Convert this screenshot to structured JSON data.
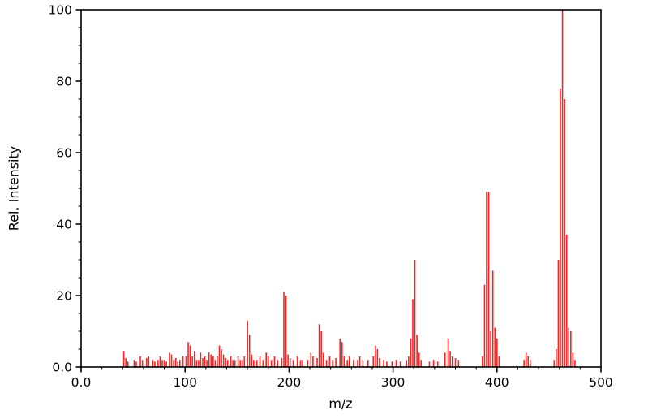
{
  "chart_data": {
    "type": "bar",
    "variant": "mass-spectrum-stick-plot",
    "title": "",
    "xlabel": "m/z",
    "ylabel": "Rel. Intensity",
    "xlim": [
      0,
      500
    ],
    "ylim": [
      0,
      100
    ],
    "grid": false,
    "legend": null,
    "background_color": "#ffffff",
    "axis_color": "#000000",
    "peak_color": "#ff1f1f",
    "xticks": {
      "values": [
        0,
        100,
        200,
        300,
        400,
        500
      ],
      "labels": [
        "0.0",
        "100",
        "200",
        "300",
        "400",
        "500"
      ],
      "minor_step": 20
    },
    "yticks": {
      "values": [
        0,
        20,
        40,
        60,
        80,
        100
      ],
      "labels": [
        "0.0",
        "20",
        "40",
        "60",
        "80",
        "100"
      ],
      "minor_step": 5
    },
    "peaks": [
      [
        41,
        4.5
      ],
      [
        43,
        2.5
      ],
      [
        45,
        1.5
      ],
      [
        51,
        2
      ],
      [
        53,
        1.5
      ],
      [
        57,
        3
      ],
      [
        59,
        2
      ],
      [
        63,
        2.5
      ],
      [
        65,
        3
      ],
      [
        69,
        2
      ],
      [
        71,
        1.5
      ],
      [
        74,
        2
      ],
      [
        76,
        3
      ],
      [
        78,
        2
      ],
      [
        80,
        2
      ],
      [
        82,
        1.5
      ],
      [
        85,
        4
      ],
      [
        87,
        3.5
      ],
      [
        89,
        2
      ],
      [
        91,
        2.5
      ],
      [
        93,
        1.5
      ],
      [
        95,
        2
      ],
      [
        98,
        3
      ],
      [
        101,
        3
      ],
      [
        103,
        7
      ],
      [
        105,
        6
      ],
      [
        107,
        3
      ],
      [
        109,
        4.5
      ],
      [
        111,
        2
      ],
      [
        113,
        2
      ],
      [
        115,
        4
      ],
      [
        117,
        2.5
      ],
      [
        119,
        3
      ],
      [
        121,
        2
      ],
      [
        123,
        4
      ],
      [
        125,
        3.5
      ],
      [
        127,
        3
      ],
      [
        129,
        2
      ],
      [
        131,
        3
      ],
      [
        133,
        6
      ],
      [
        135,
        5
      ],
      [
        137,
        3.5
      ],
      [
        139,
        2.5
      ],
      [
        141,
        2
      ],
      [
        144,
        3
      ],
      [
        146,
        2
      ],
      [
        148,
        2
      ],
      [
        151,
        3
      ],
      [
        153,
        2
      ],
      [
        155,
        2
      ],
      [
        157,
        3
      ],
      [
        160,
        13
      ],
      [
        162,
        9
      ],
      [
        164,
        3.5
      ],
      [
        166,
        2
      ],
      [
        169,
        2
      ],
      [
        172,
        3
      ],
      [
        175,
        2
      ],
      [
        178,
        4
      ],
      [
        180,
        3
      ],
      [
        183,
        2
      ],
      [
        186,
        3
      ],
      [
        189,
        2
      ],
      [
        193,
        2.5
      ],
      [
        195,
        21
      ],
      [
        197,
        20
      ],
      [
        199,
        3.5
      ],
      [
        201,
        2.5
      ],
      [
        204,
        2
      ],
      [
        208,
        3
      ],
      [
        211,
        2
      ],
      [
        213,
        2
      ],
      [
        218,
        2
      ],
      [
        221,
        4
      ],
      [
        223,
        3
      ],
      [
        227,
        2.5
      ],
      [
        229,
        12
      ],
      [
        231,
        10
      ],
      [
        233,
        4
      ],
      [
        236,
        2
      ],
      [
        239,
        3
      ],
      [
        242,
        2
      ],
      [
        245,
        2.5
      ],
      [
        249,
        8
      ],
      [
        251,
        7
      ],
      [
        253,
        3
      ],
      [
        256,
        2
      ],
      [
        258,
        3
      ],
      [
        262,
        2
      ],
      [
        266,
        2
      ],
      [
        268,
        3
      ],
      [
        271,
        2
      ],
      [
        276,
        2
      ],
      [
        281,
        3
      ],
      [
        283,
        6
      ],
      [
        285,
        5
      ],
      [
        287,
        2.5
      ],
      [
        291,
        2
      ],
      [
        294,
        1.5
      ],
      [
        299,
        1.5
      ],
      [
        303,
        2
      ],
      [
        307,
        1.5
      ],
      [
        313,
        2
      ],
      [
        315,
        3
      ],
      [
        317,
        8
      ],
      [
        319,
        19
      ],
      [
        321,
        30
      ],
      [
        323,
        9
      ],
      [
        325,
        4
      ],
      [
        327,
        2
      ],
      [
        335,
        1.5
      ],
      [
        339,
        2
      ],
      [
        343,
        1.5
      ],
      [
        350,
        4
      ],
      [
        353,
        8
      ],
      [
        355,
        4.5
      ],
      [
        357,
        3
      ],
      [
        360,
        2.5
      ],
      [
        363,
        2
      ],
      [
        386,
        3
      ],
      [
        388,
        23
      ],
      [
        390,
        49
      ],
      [
        392,
        49
      ],
      [
        394,
        10
      ],
      [
        396,
        27
      ],
      [
        398,
        11
      ],
      [
        400,
        8
      ],
      [
        402,
        3
      ],
      [
        426,
        2
      ],
      [
        428,
        4
      ],
      [
        430,
        3
      ],
      [
        432,
        2
      ],
      [
        455,
        2
      ],
      [
        457,
        5
      ],
      [
        459,
        30
      ],
      [
        461,
        78
      ],
      [
        463,
        100
      ],
      [
        465,
        75
      ],
      [
        467,
        37
      ],
      [
        469,
        11
      ],
      [
        471,
        10
      ],
      [
        473,
        4
      ],
      [
        475,
        2
      ]
    ]
  }
}
